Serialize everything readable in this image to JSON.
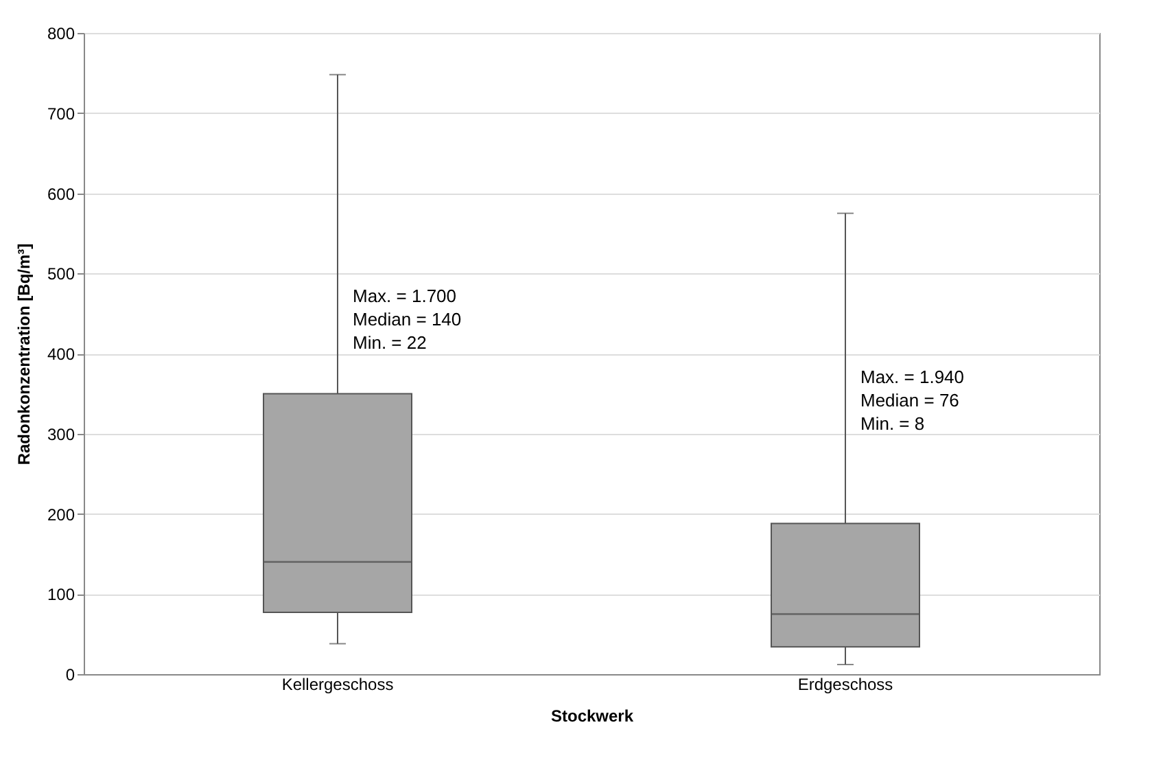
{
  "chart_data": {
    "type": "box",
    "xlabel": "Stockwerk",
    "ylabel": "Radonkonzentration [Bq/m³]",
    "categories": [
      "Kellergeschoss",
      "Erdgeschoss"
    ],
    "boxes": [
      {
        "low": 38,
        "q1": 77,
        "median": 140,
        "q3": 350,
        "high": 748
      },
      {
        "low": 12,
        "q1": 34,
        "median": 75,
        "q3": 188,
        "high": 575
      }
    ],
    "color": "#a6a6a6",
    "ylim": [
      0,
      800
    ],
    "yticks": [
      0,
      100,
      200,
      300,
      400,
      500,
      600,
      700,
      800
    ],
    "grid": "y",
    "annotations": [
      "Max. = 1.700\nMedian = 140\nMin. = 22",
      "Max. = 1.940\nMedian = 76\nMin. = 8"
    ]
  }
}
